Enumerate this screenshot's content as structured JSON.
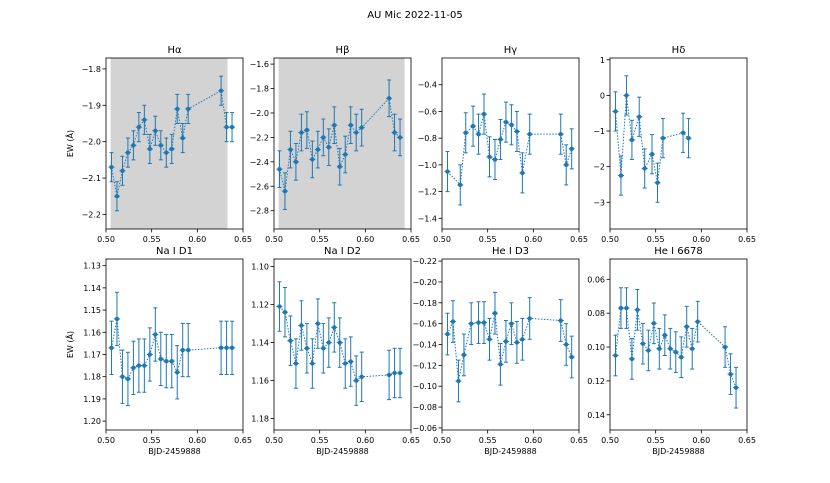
{
  "figure": {
    "title": "AU Mic 2022-11-05"
  },
  "chart_data": [
    {
      "type": "scatter",
      "title": "Hα",
      "xlabel": "",
      "ylabel": "EW (Å)",
      "xlim": [
        0.5,
        0.65
      ],
      "ylim": [
        -1.77,
        -2.24
      ],
      "y_inverted": true,
      "xticks": [
        "0.50",
        "0.55",
        "0.60",
        "0.65"
      ],
      "yticks": [
        -2.2,
        -2.1,
        -2.0,
        -1.9,
        -1.8
      ],
      "ytick_labels": [
        "−2.2",
        "−2.1",
        "−2.0",
        "−1.9",
        "−1.8"
      ],
      "shaded": [
        0.505,
        0.633
      ],
      "x": [
        0.506,
        0.512,
        0.518,
        0.524,
        0.53,
        0.536,
        0.542,
        0.548,
        0.554,
        0.56,
        0.566,
        0.572,
        0.578,
        0.584,
        0.59,
        0.626,
        0.632,
        0.638
      ],
      "y": [
        -2.07,
        -2.15,
        -2.08,
        -2.03,
        -2.01,
        -1.96,
        -1.94,
        -2.02,
        -1.97,
        -2.01,
        -2.03,
        -2.02,
        -1.91,
        -1.99,
        -1.91,
        -1.86,
        -1.96,
        -1.96
      ],
      "err": [
        0.04,
        0.04,
        0.04,
        0.04,
        0.04,
        0.04,
        0.04,
        0.04,
        0.04,
        0.04,
        0.04,
        0.04,
        0.04,
        0.04,
        0.04,
        0.04,
        0.04,
        0.04
      ]
    },
    {
      "type": "scatter",
      "title": "Hβ",
      "xlabel": "",
      "ylabel": "",
      "xlim": [
        0.5,
        0.65
      ],
      "ylim": [
        -1.55,
        -2.95
      ],
      "y_inverted": true,
      "xticks": [
        "0.50",
        "0.55",
        "0.60",
        "0.65"
      ],
      "yticks": [
        -2.8,
        -2.6,
        -2.4,
        -2.2,
        -2.0,
        -1.8,
        -1.6
      ],
      "ytick_labels": [
        "−2.8",
        "−2.6",
        "−2.4",
        "−2.2",
        "−2.0",
        "−1.8",
        "−1.6"
      ],
      "shaded": [
        0.505,
        0.643
      ],
      "x": [
        0.506,
        0.512,
        0.518,
        0.524,
        0.53,
        0.536,
        0.542,
        0.548,
        0.554,
        0.56,
        0.566,
        0.572,
        0.578,
        0.584,
        0.59,
        0.596,
        0.626,
        0.632,
        0.638
      ],
      "y": [
        -2.46,
        -2.64,
        -2.3,
        -2.4,
        -2.16,
        -2.14,
        -2.38,
        -2.3,
        -2.2,
        -2.28,
        -2.1,
        -2.44,
        -2.34,
        -2.1,
        -2.16,
        -2.12,
        -1.88,
        -2.16,
        -2.2
      ],
      "err": [
        0.15,
        0.15,
        0.15,
        0.15,
        0.15,
        0.15,
        0.15,
        0.15,
        0.15,
        0.15,
        0.15,
        0.15,
        0.15,
        0.15,
        0.15,
        0.15,
        0.15,
        0.15,
        0.15
      ]
    },
    {
      "type": "scatter",
      "title": "Hγ",
      "xlabel": "",
      "ylabel": "",
      "xlim": [
        0.5,
        0.65
      ],
      "ylim": [
        -0.2,
        -1.48
      ],
      "y_inverted": true,
      "xticks": [
        "0.50",
        "0.55",
        "0.60",
        "0.65"
      ],
      "yticks": [
        -1.4,
        -1.2,
        -1.0,
        -0.8,
        -0.6,
        -0.4
      ],
      "ytick_labels": [
        "−1.4",
        "−1.2",
        "−1.0",
        "−0.8",
        "−0.6",
        "−0.4"
      ],
      "x": [
        0.506,
        0.52,
        0.526,
        0.534,
        0.54,
        0.546,
        0.552,
        0.558,
        0.564,
        0.57,
        0.576,
        0.582,
        0.588,
        0.596,
        0.63,
        0.636,
        0.642
      ],
      "y": [
        -1.05,
        -1.15,
        -0.76,
        -0.71,
        -0.77,
        -0.62,
        -0.94,
        -0.96,
        -0.81,
        -0.68,
        -0.7,
        -0.75,
        -1.06,
        -0.77,
        -0.77,
        -1.0,
        -0.88
      ],
      "err": [
        0.15,
        0.15,
        0.15,
        0.15,
        0.15,
        0.15,
        0.15,
        0.15,
        0.15,
        0.15,
        0.15,
        0.15,
        0.15,
        0.15,
        0.15,
        0.15,
        0.15
      ]
    },
    {
      "type": "scatter",
      "title": "Hδ",
      "xlabel": "",
      "ylabel": "",
      "xlim": [
        0.5,
        0.65
      ],
      "ylim": [
        1.05,
        -3.75
      ],
      "y_inverted": true,
      "xticks": [
        "0.50",
        "0.55",
        "0.60",
        "0.65"
      ],
      "yticks": [
        -3,
        -2,
        -1,
        0,
        1
      ],
      "ytick_labels": [
        "−3",
        "−2",
        "−1",
        "0",
        "1"
      ],
      "x": [
        0.506,
        0.512,
        0.518,
        0.524,
        0.532,
        0.538,
        0.546,
        0.552,
        0.558,
        0.58,
        0.586
      ],
      "y": [
        -0.45,
        -2.25,
        0.0,
        -1.25,
        -0.6,
        -2.05,
        -1.65,
        -2.45,
        -1.2,
        -1.05,
        -1.2
      ],
      "err": [
        0.55,
        0.55,
        0.55,
        0.55,
        0.55,
        0.55,
        0.55,
        0.55,
        0.55,
        0.55,
        0.55
      ]
    },
    {
      "type": "scatter",
      "title": "Na I D1",
      "xlabel": "BJD-2459888",
      "ylabel": "EW (Å)",
      "xlim": [
        0.5,
        0.65
      ],
      "ylim": [
        1.127,
        1.204
      ],
      "y_inverted": true,
      "xticks": [
        "0.50",
        "0.55",
        "0.60",
        "0.65"
      ],
      "yticks": [
        1.13,
        1.14,
        1.15,
        1.16,
        1.17,
        1.18,
        1.19,
        1.2
      ],
      "ytick_labels": [
        "1.13",
        "1.14",
        "1.15",
        "1.16",
        "1.17",
        "1.18",
        "1.19",
        "1.20"
      ],
      "x": [
        0.506,
        0.512,
        0.518,
        0.524,
        0.53,
        0.536,
        0.542,
        0.548,
        0.554,
        0.56,
        0.566,
        0.572,
        0.578,
        0.584,
        0.59,
        0.626,
        0.632,
        0.638
      ],
      "y": [
        1.167,
        1.154,
        1.18,
        1.181,
        1.176,
        1.175,
        1.175,
        1.17,
        1.161,
        1.172,
        1.173,
        1.173,
        1.178,
        1.168,
        1.168,
        1.167,
        1.167,
        1.167
      ],
      "err": [
        0.012,
        0.012,
        0.012,
        0.012,
        0.012,
        0.012,
        0.012,
        0.012,
        0.012,
        0.012,
        0.012,
        0.012,
        0.012,
        0.012,
        0.012,
        0.012,
        0.012,
        0.012
      ]
    },
    {
      "type": "scatter",
      "title": "Na I D2",
      "xlabel": "BJD-2459888",
      "ylabel": "",
      "xlim": [
        0.5,
        0.65
      ],
      "ylim": [
        1.096,
        1.186
      ],
      "y_inverted": true,
      "xticks": [
        "0.50",
        "0.55",
        "0.60",
        "0.65"
      ],
      "yticks": [
        1.1,
        1.12,
        1.14,
        1.16,
        1.18
      ],
      "ytick_labels": [
        "1.10",
        "1.12",
        "1.14",
        "1.16",
        "1.18"
      ],
      "x": [
        0.506,
        0.512,
        0.518,
        0.524,
        0.53,
        0.536,
        0.542,
        0.548,
        0.554,
        0.56,
        0.566,
        0.572,
        0.578,
        0.584,
        0.59,
        0.596,
        0.626,
        0.632,
        0.638
      ],
      "y": [
        1.121,
        1.124,
        1.139,
        1.151,
        1.131,
        1.143,
        1.151,
        1.13,
        1.143,
        1.14,
        1.132,
        1.14,
        1.151,
        1.15,
        1.16,
        1.158,
        1.157,
        1.156,
        1.156
      ],
      "err": [
        0.013,
        0.013,
        0.013,
        0.013,
        0.013,
        0.013,
        0.013,
        0.013,
        0.013,
        0.013,
        0.013,
        0.013,
        0.013,
        0.013,
        0.013,
        0.013,
        0.013,
        0.013,
        0.013
      ]
    },
    {
      "type": "scatter",
      "title": "He I D3",
      "xlabel": "BJD-2459888",
      "ylabel": "",
      "xlim": [
        0.5,
        0.65
      ],
      "ylim": [
        -0.222,
        -0.058
      ],
      "y_inverted": true,
      "xticks": [
        "0.50",
        "0.55",
        "0.60",
        "0.65"
      ],
      "yticks": [
        -0.22,
        -0.2,
        -0.18,
        -0.16,
        -0.14,
        -0.12,
        -0.1,
        -0.08,
        -0.06
      ],
      "ytick_labels": [
        "−0.22",
        "−0.20",
        "−0.18",
        "−0.16",
        "−0.14",
        "−0.12",
        "−0.10",
        "−0.08",
        "−0.06"
      ],
      "x": [
        0.506,
        0.512,
        0.518,
        0.524,
        0.532,
        0.54,
        0.546,
        0.552,
        0.558,
        0.564,
        0.57,
        0.576,
        0.582,
        0.588,
        0.596,
        0.63,
        0.636,
        0.642
      ],
      "y": [
        -0.15,
        -0.162,
        -0.105,
        -0.13,
        -0.16,
        -0.161,
        -0.161,
        -0.145,
        -0.17,
        -0.121,
        -0.143,
        -0.16,
        -0.142,
        -0.145,
        -0.165,
        -0.163,
        -0.14,
        -0.128
      ],
      "err": [
        0.02,
        0.02,
        0.02,
        0.02,
        0.02,
        0.02,
        0.02,
        0.02,
        0.02,
        0.02,
        0.02,
        0.02,
        0.02,
        0.02,
        0.02,
        0.02,
        0.02,
        0.02
      ]
    },
    {
      "type": "scatter",
      "title": "He I 6678",
      "xlabel": "BJD-2459888",
      "ylabel": "",
      "xlim": [
        0.5,
        0.65
      ],
      "ylim": [
        0.048,
        0.149
      ],
      "y_inverted": true,
      "xticks": [
        "0.50",
        "0.55",
        "0.60",
        "0.65"
      ],
      "yticks": [
        0.06,
        0.08,
        0.1,
        0.12,
        0.14
      ],
      "ytick_labels": [
        "0.06",
        "0.08",
        "0.10",
        "0.12",
        "0.14"
      ],
      "x": [
        0.506,
        0.512,
        0.518,
        0.524,
        0.53,
        0.536,
        0.542,
        0.548,
        0.554,
        0.56,
        0.566,
        0.572,
        0.578,
        0.584,
        0.59,
        0.596,
        0.626,
        0.632,
        0.638
      ],
      "y": [
        0.105,
        0.077,
        0.077,
        0.107,
        0.078,
        0.098,
        0.102,
        0.086,
        0.101,
        0.093,
        0.101,
        0.103,
        0.106,
        0.088,
        0.101,
        0.085,
        0.1,
        0.116,
        0.124
      ],
      "err": [
        0.012,
        0.012,
        0.012,
        0.012,
        0.012,
        0.012,
        0.012,
        0.012,
        0.012,
        0.012,
        0.012,
        0.012,
        0.012,
        0.012,
        0.012,
        0.012,
        0.012,
        0.012,
        0.012
      ]
    }
  ],
  "style": {
    "marker_color": "#1f77b4",
    "shade_color": "#d3d3d3",
    "axis_color": "#000000",
    "background": "#ffffff"
  }
}
